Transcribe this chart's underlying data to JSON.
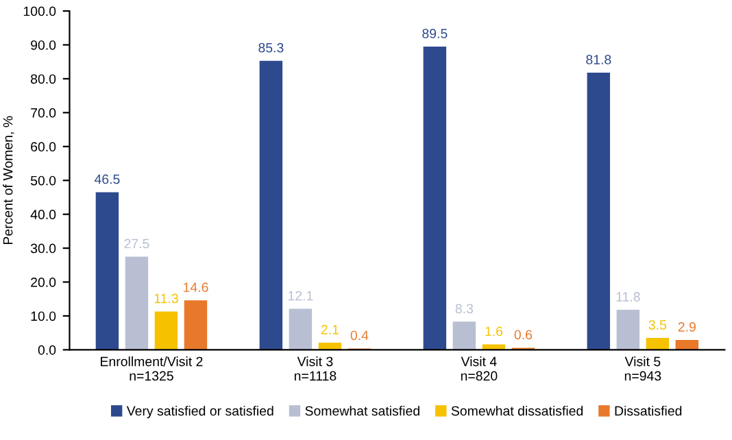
{
  "chart_data": {
    "type": "bar",
    "ylabel": "Percent of Women, %",
    "categories": [
      "Enrollment/Visit 2\nn=1325",
      "Visit 3\nn=1118",
      "Visit 4\nn=820",
      "Visit 5\nn=943"
    ],
    "series": [
      {
        "name": "Very satisfied or satisfied",
        "color": "#2e4a8e",
        "values": [
          46.5,
          85.3,
          89.5,
          81.8
        ]
      },
      {
        "name": "Somewhat satisfied",
        "color": "#b9bfd3",
        "values": [
          27.5,
          12.1,
          8.3,
          11.8
        ]
      },
      {
        "name": "Somewhat dissatisfied",
        "color": "#f6c200",
        "values": [
          11.3,
          2.1,
          1.6,
          3.5
        ]
      },
      {
        "name": "Dissatisfied",
        "color": "#e8792a",
        "values": [
          14.6,
          0.4,
          0.6,
          2.9
        ]
      }
    ],
    "ylim": [
      0,
      100
    ],
    "yticks": [
      {
        "value": 0,
        "label": "0.0"
      },
      {
        "value": 10,
        "label": "10.0"
      },
      {
        "value": 20,
        "label": "20.0"
      },
      {
        "value": 30,
        "label": "30.0"
      },
      {
        "value": 40,
        "label": "40.0"
      },
      {
        "value": 50,
        "label": "50.0"
      },
      {
        "value": 60,
        "label": "60.0"
      },
      {
        "value": 70,
        "label": "70.0"
      },
      {
        "value": 80,
        "label": "80.0"
      },
      {
        "value": 90,
        "label": "90.0"
      },
      {
        "value": 100,
        "label": "100.0"
      }
    ],
    "data_labels": true,
    "grid": false,
    "legend": "bottom"
  }
}
